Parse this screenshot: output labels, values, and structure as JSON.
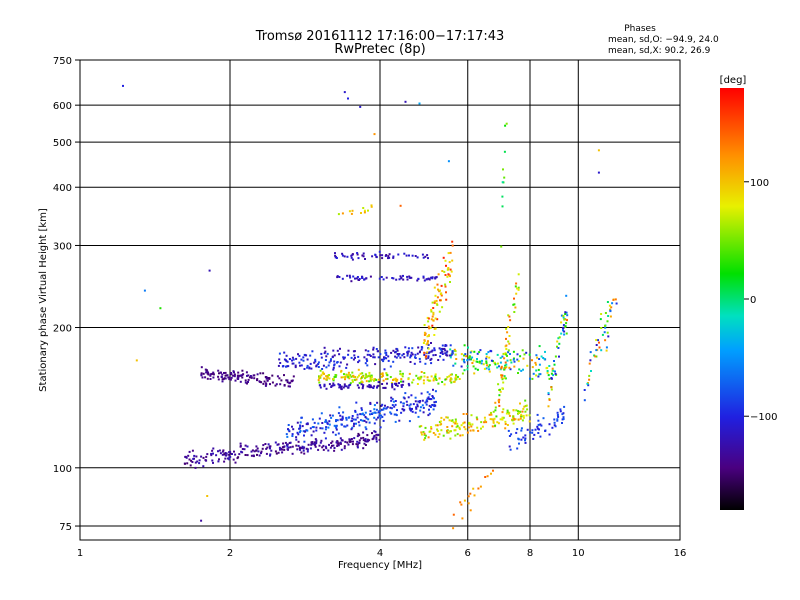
{
  "chart_data": {
    "type": "scatter",
    "title": "Tromsø 20161112 17:16:00−17:17:43",
    "subtitle": "RwPretec (8p)",
    "stats": {
      "heading": "Phases",
      "line_o": "mean, sd,O: −94.9, 24.0",
      "line_x": "mean, sd,X:  90.2, 26.9"
    },
    "xlabel": "Frequency [MHz]",
    "ylabel": "Stationary phase Virtual Height [km]",
    "xscale": "log",
    "yscale": "log",
    "xlim": [
      1,
      16
    ],
    "ylim": [
      70,
      750
    ],
    "xticks": [
      1,
      2,
      4,
      6,
      8,
      10,
      16
    ],
    "xtick_labels": [
      "1",
      "2",
      "4",
      "6",
      "8",
      "10",
      "16"
    ],
    "yticks": [
      75,
      100,
      200,
      300,
      400,
      500,
      600,
      750
    ],
    "ytick_labels": [
      "75",
      "100",
      "200",
      "300",
      "400",
      "500",
      "600",
      "750"
    ],
    "grid": true,
    "colorbar": {
      "label": "[deg]",
      "range": [
        -180,
        180
      ],
      "ticks": [
        100,
        0,
        -100
      ],
      "tick_labels": [
        "100",
        "0",
        "−100"
      ]
    },
    "clusters": [
      {
        "f0": 1.62,
        "f1": 4.0,
        "h0": 104,
        "h1": 116,
        "spread": 0.028,
        "ph0": -150,
        "ph1": -115,
        "n": 260
      },
      {
        "f0": 2.6,
        "f1": 5.2,
        "h0": 118,
        "h1": 140,
        "spread": 0.045,
        "ph0": -125,
        "ph1": -60,
        "n": 260
      },
      {
        "f0": 4.8,
        "f1": 8.0,
        "h0": 118,
        "h1": 132,
        "spread": 0.04,
        "ph0": 40,
        "ph1": 130,
        "n": 160
      },
      {
        "f0": 7.2,
        "f1": 9.4,
        "h0": 112,
        "h1": 130,
        "spread": 0.04,
        "ph0": -110,
        "ph1": -70,
        "n": 60
      },
      {
        "f0": 1.75,
        "f1": 2.7,
        "h0": 160,
        "h1": 152,
        "spread": 0.02,
        "ph0": -150,
        "ph1": -130,
        "n": 130
      },
      {
        "f0": 2.5,
        "f1": 5.6,
        "h0": 168,
        "h1": 178,
        "spread": 0.04,
        "ph0": -130,
        "ph1": -80,
        "n": 230
      },
      {
        "f0": 3.0,
        "f1": 5.8,
        "h0": 157,
        "h1": 155,
        "spread": 0.02,
        "ph0": 30,
        "ph1": 120,
        "n": 180
      },
      {
        "f0": 3.0,
        "f1": 4.6,
        "h0": 150,
        "h1": 150,
        "spread": 0.012,
        "ph0": -130,
        "ph1": -110,
        "n": 70
      },
      {
        "f0": 5.5,
        "f1": 9.0,
        "h0": 172,
        "h1": 165,
        "spread": 0.05,
        "ph0": -110,
        "ph1": 130,
        "n": 150
      },
      {
        "f0": 3.2,
        "f1": 5.2,
        "h0": 255,
        "h1": 255,
        "spread": 0.01,
        "ph0": -135,
        "ph1": -100,
        "n": 60
      },
      {
        "f0": 3.2,
        "f1": 5.0,
        "h0": 285,
        "h1": 285,
        "spread": 0.012,
        "ph0": -140,
        "ph1": -100,
        "n": 50
      },
      {
        "f0": 4.9,
        "f1": 5.6,
        "h0": 180,
        "h1": 290,
        "spread": 0.08,
        "ph0": 60,
        "ph1": 170,
        "n": 90
      },
      {
        "f0": 6.8,
        "f1": 7.6,
        "h0": 130,
        "h1": 250,
        "spread": 0.09,
        "ph0": 20,
        "ph1": 150,
        "n": 60
      },
      {
        "f0": 8.7,
        "f1": 9.5,
        "h0": 140,
        "h1": 220,
        "spread": 0.08,
        "ph0": -120,
        "ph1": 150,
        "n": 50
      },
      {
        "f0": 10.3,
        "f1": 12.0,
        "h0": 150,
        "h1": 240,
        "spread": 0.08,
        "ph0": -120,
        "ph1": 170,
        "n": 50
      },
      {
        "f0": 3.3,
        "f1": 3.9,
        "h0": 350,
        "h1": 360,
        "spread": 0.015,
        "ph0": 60,
        "ph1": 120,
        "n": 12
      },
      {
        "f0": 7.0,
        "f1": 7.2,
        "h0": 330,
        "h1": 600,
        "spread": 0.1,
        "ph0": -10,
        "ph1": 60,
        "n": 10
      },
      {
        "f0": 5.6,
        "f1": 6.8,
        "h0": 78,
        "h1": 98,
        "spread": 0.04,
        "ph0": 100,
        "ph1": 160,
        "n": 18
      }
    ],
    "isolated_points": [
      {
        "x": 1.22,
        "y": 660,
        "phase": -100
      },
      {
        "x": 3.4,
        "y": 640,
        "phase": -110
      },
      {
        "x": 3.45,
        "y": 620,
        "phase": -100
      },
      {
        "x": 3.65,
        "y": 595,
        "phase": -110
      },
      {
        "x": 4.5,
        "y": 610,
        "phase": -120
      },
      {
        "x": 4.8,
        "y": 605,
        "phase": -40
      },
      {
        "x": 5.5,
        "y": 455,
        "phase": -50
      },
      {
        "x": 11.0,
        "y": 480,
        "phase": 100
      },
      {
        "x": 11.0,
        "y": 430,
        "phase": -110
      },
      {
        "x": 3.9,
        "y": 520,
        "phase": 120
      },
      {
        "x": 1.35,
        "y": 240,
        "phase": -60
      },
      {
        "x": 1.45,
        "y": 220,
        "phase": 30
      },
      {
        "x": 1.82,
        "y": 265,
        "phase": -120
      },
      {
        "x": 1.3,
        "y": 170,
        "phase": 100
      },
      {
        "x": 1.8,
        "y": 87,
        "phase": 100
      },
      {
        "x": 1.75,
        "y": 77,
        "phase": -130
      },
      {
        "x": 4.4,
        "y": 365,
        "phase": 140
      }
    ]
  }
}
